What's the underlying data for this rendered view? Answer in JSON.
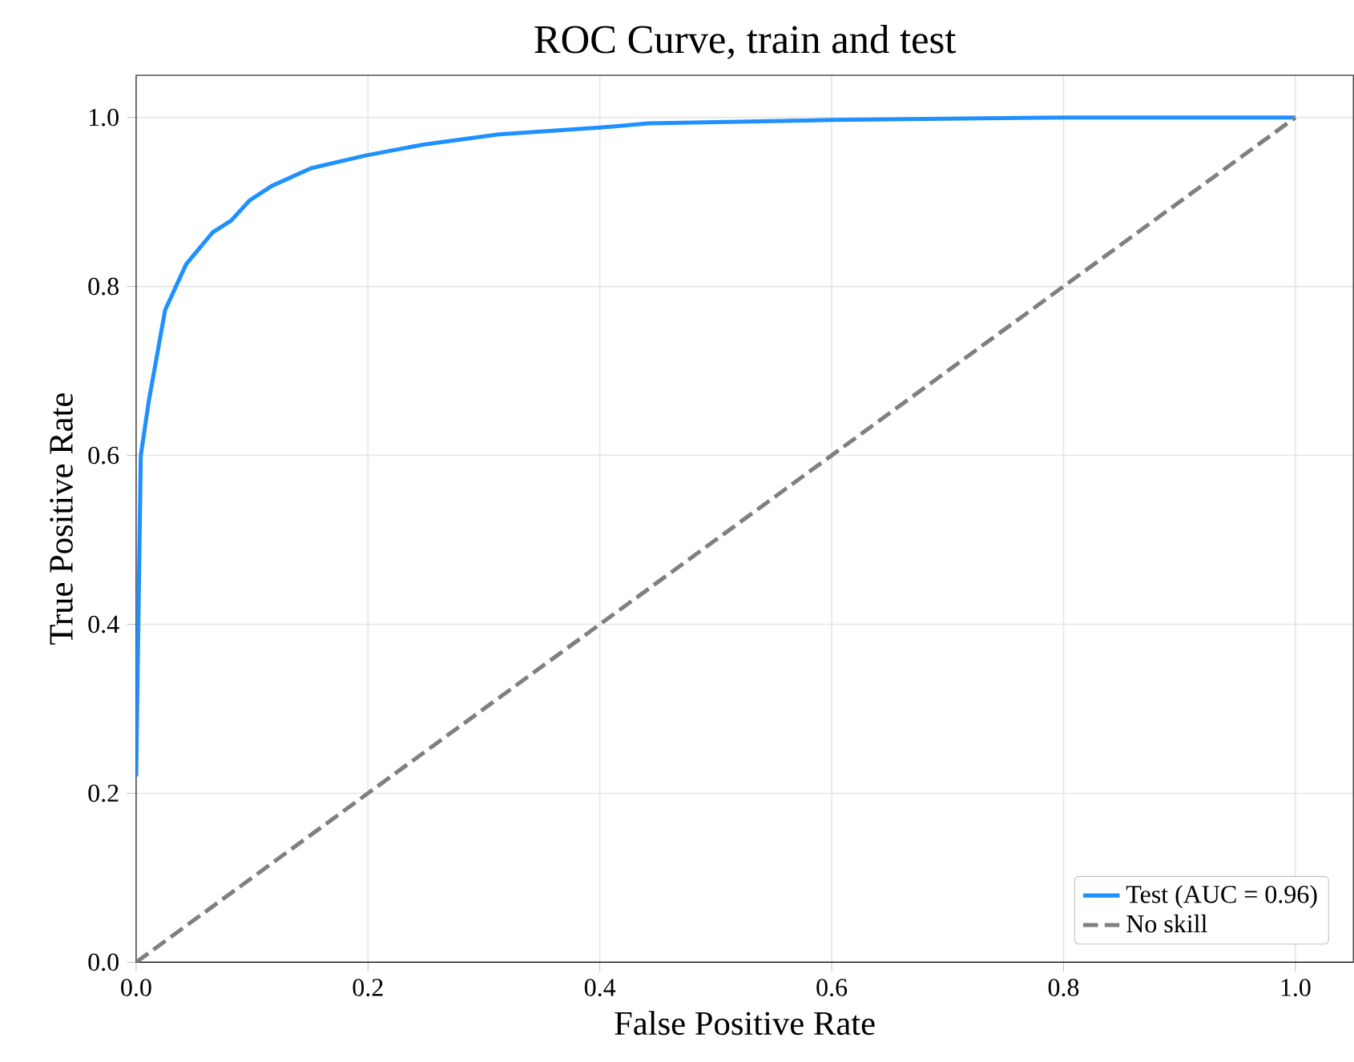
{
  "chart_data": {
    "type": "line",
    "title": "ROC Curve, train and test",
    "xlabel": "False Positive Rate",
    "ylabel": "True Positive Rate",
    "series": [
      {
        "name": "Test (AUC = 0.96)",
        "color": "#1e90ff",
        "line_style": "solid",
        "x": [
          0,
          0.004,
          0.011,
          0.025,
          0.043,
          0.066,
          0.082,
          0.098,
          0.117,
          0.151,
          0.198,
          0.248,
          0.313,
          0.4,
          0.442,
          0.6,
          0.8,
          1.0
        ],
        "values": [
          0.22,
          0.6,
          0.665,
          0.772,
          0.826,
          0.864,
          0.878,
          0.902,
          0.919,
          0.94,
          0.955,
          0.968,
          0.98,
          0.988,
          0.993,
          0.997,
          1.0,
          1.0
        ]
      },
      {
        "name": "No skill",
        "color": "#808080",
        "line_style": "dashed",
        "x": [
          0,
          1
        ],
        "values": [
          0,
          1
        ]
      }
    ],
    "xlim": [
      0,
      1.05
    ],
    "ylim": [
      0,
      1.05
    ],
    "xticks": [
      {
        "value": 0,
        "label": "0.0"
      },
      0.2,
      0.4,
      0.6,
      0.8,
      {
        "value": 1,
        "label": "1.0"
      }
    ],
    "yticks": [
      {
        "value": 0,
        "label": "0.0"
      },
      0.2,
      0.4,
      0.6,
      0.8,
      {
        "value": 1,
        "label": "1.0"
      }
    ],
    "grid": true,
    "legend": "bottom right",
    "marker": "none"
  }
}
